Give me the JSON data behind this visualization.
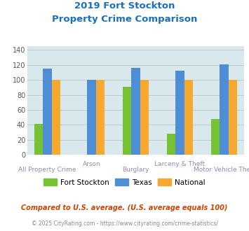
{
  "title_line1": "2019 Fort Stockton",
  "title_line2": "Property Crime Comparison",
  "categories": [
    "All Property Crime",
    "Arson",
    "Burglary",
    "Larceny & Theft",
    "Motor Vehicle Theft"
  ],
  "x_labels_top": [
    "",
    "Arson",
    "",
    "Larceny & Theft",
    ""
  ],
  "x_labels_bot": [
    "All Property Crime",
    "",
    "Burglary",
    "",
    "Motor Vehicle Theft"
  ],
  "series": {
    "Fort Stockton": [
      41,
      0,
      91,
      28,
      48
    ],
    "Texas": [
      115,
      100,
      116,
      112,
      121
    ],
    "National": [
      100,
      100,
      100,
      100,
      100
    ]
  },
  "colors": {
    "Fort Stockton": "#77c232",
    "Texas": "#4d8ed4",
    "National": "#f5a930"
  },
  "ylim": [
    0,
    145
  ],
  "yticks": [
    0,
    20,
    40,
    60,
    80,
    100,
    120,
    140
  ],
  "grid_color": "#bbcccc",
  "bg_color": "#d8e8ec",
  "title_color": "#1a6fbe",
  "xlabel_color": "#9988aa",
  "footnote1": "Compared to U.S. average. (U.S. average equals 100)",
  "footnote2": "© 2025 CityRating.com - https://www.cityrating.com/crime-statistics/",
  "footnote1_color": "#cc4400",
  "footnote2_color": "#888899",
  "bar_width": 0.2,
  "legend_labels": [
    "Fort Stockton",
    "Texas",
    "National"
  ]
}
